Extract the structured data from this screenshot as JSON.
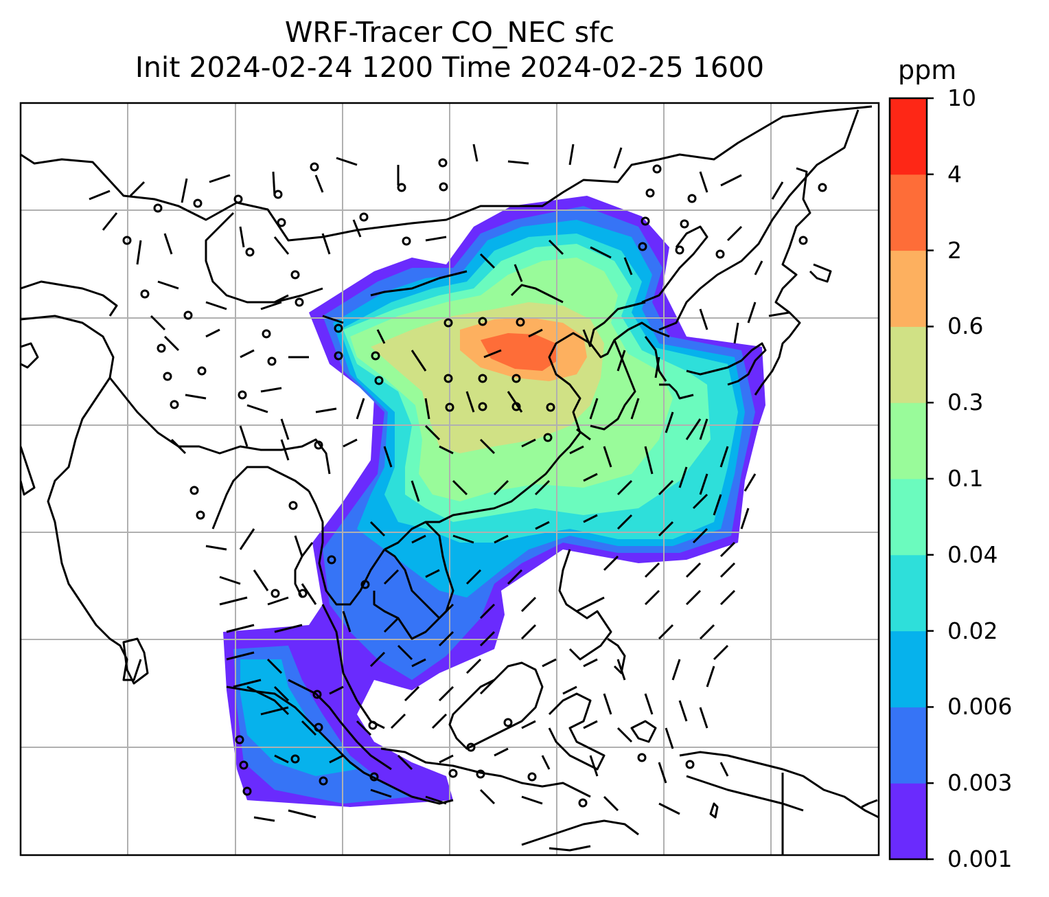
{
  "title": {
    "line1": "WRF-Tracer CO_NEC sfc",
    "line2": "Init 2024-02-24 1200 Time 2024-02-25 1600"
  },
  "colorbar": {
    "unit": "ppm",
    "ticks": [
      "0.001",
      "0.003",
      "0.006",
      "0.02",
      "0.04",
      "0.1",
      "0.3",
      "0.6",
      "2",
      "4",
      "10"
    ],
    "colors": [
      "#6a2bfd",
      "#3674f6",
      "#06b2ec",
      "#2edfda",
      "#6bfbbe",
      "#99fb9a",
      "#d0e185",
      "#fdb05f",
      "#fe6d38",
      "#fe2716"
    ]
  },
  "map": {
    "gridlines": true,
    "features": [
      "coastlines",
      "country-borders",
      "wind-barbs",
      "tracer-concentration-shading"
    ]
  }
}
